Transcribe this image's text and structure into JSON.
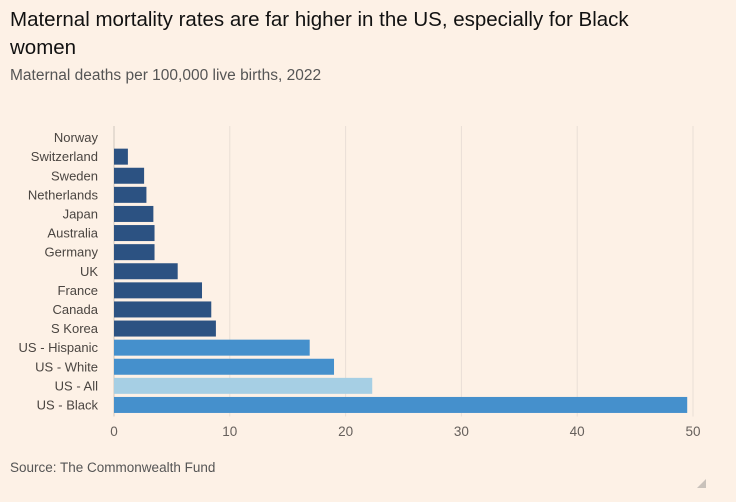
{
  "title": "Maternal mortality rates are far higher in the US, especially for Black women",
  "subtitle": "Maternal deaths per 100,000 live births, 2022",
  "source": "Source: The Commonwealth Fund",
  "colors": {
    "background": "#FDF1E6",
    "peer_countries": "#2C5282",
    "us_groups": "#4590CC",
    "us_all": "#A6CFE4",
    "grid": "#E9DFD6"
  },
  "chart_data": {
    "type": "bar",
    "orientation": "horizontal",
    "title": "Maternal mortality rates are far higher in the US, especially for Black women",
    "subtitle": "Maternal deaths per 100,000 live births, 2022",
    "xlabel": "",
    "ylabel": "",
    "xlim": [
      0,
      50
    ],
    "xticks": [
      "0",
      "10",
      "20",
      "30",
      "40",
      "50"
    ],
    "grid": true,
    "categories": [
      "Norway",
      "Switzerland",
      "Sweden",
      "Netherlands",
      "Japan",
      "Australia",
      "Germany",
      "UK",
      "France",
      "Canada",
      "S Korea",
      "US - Hispanic",
      "US - White",
      "US - All",
      "US - Black"
    ],
    "values": [
      0,
      1.2,
      2.6,
      2.8,
      3.4,
      3.5,
      3.5,
      5.5,
      7.6,
      8.4,
      8.8,
      16.9,
      19.0,
      22.3,
      49.5
    ],
    "color_groups": [
      "peer_countries",
      "peer_countries",
      "peer_countries",
      "peer_countries",
      "peer_countries",
      "peer_countries",
      "peer_countries",
      "peer_countries",
      "peer_countries",
      "peer_countries",
      "peer_countries",
      "us_groups",
      "us_groups",
      "us_all",
      "us_groups"
    ]
  }
}
